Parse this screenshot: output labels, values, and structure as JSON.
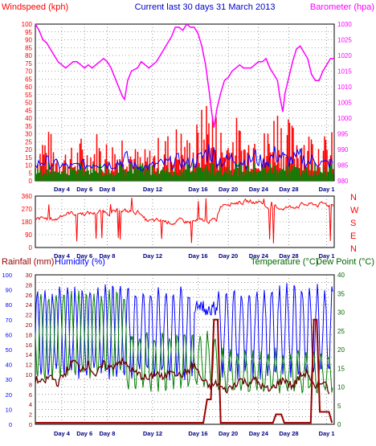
{
  "header": {
    "windspeed_label": "Windspeed (kph)",
    "title": "Current last 30 days 31 March 2013",
    "barometer_label": "Barometer (hpa)"
  },
  "bottom_header": {
    "rainfall_label": "Rainfall (mm)",
    "humidity_label": "Humidity (%)",
    "temperature_label": "Temperature (°C)",
    "dewpoint_label": "Dew Point (°C)"
  },
  "direction_labels": [
    "N",
    "W",
    "S",
    "E",
    "N"
  ],
  "x_tick_labels": [
    "Day 4",
    "Day 6",
    "Day 8",
    "Day 12",
    "Day 16",
    "Day 20",
    "Day 24",
    "Day 28",
    "Day 1"
  ],
  "colors": {
    "windspeed": "#ff0000",
    "gust": "#0000ff",
    "average": "#008000",
    "barometer": "#ff00ff",
    "direction": "#ff0000",
    "humidity": "#0000ff",
    "temperature": "#008000",
    "dewpoint": "#660000",
    "rainfall": "#990000",
    "title": "#0000cc",
    "right_labels": "#006600"
  },
  "chart_data": [
    {
      "type": "line",
      "title": "Current last 30 days 31 March 2013",
      "y_left_label": "Windspeed (kph)",
      "y_left_range": [
        0,
        100
      ],
      "y_left_ticks": [
        0,
        5,
        10,
        15,
        20,
        25,
        30,
        35,
        40,
        45,
        50,
        55,
        60,
        65,
        70,
        75,
        80,
        85,
        90,
        95,
        100
      ],
      "y_right_label": "Barometer (hpa)",
      "y_right_range": [
        980,
        1030
      ],
      "y_right_ticks": [
        980,
        985,
        990,
        995,
        1000,
        1005,
        1010,
        1015,
        1020,
        1025,
        1030
      ],
      "grid": true,
      "series": [
        {
          "name": "Barometer (hpa)",
          "axis": "right",
          "points": [
            [
              0,
              1030
            ],
            [
              0.5,
              1028
            ],
            [
              1,
              1025
            ],
            [
              1.5,
              1024
            ],
            [
              2,
              1022
            ],
            [
              2.5,
              1020
            ],
            [
              3,
              1018
            ],
            [
              3.5,
              1017
            ],
            [
              4,
              1016
            ],
            [
              4.5,
              1017
            ],
            [
              5,
              1018
            ],
            [
              5.5,
              1018
            ],
            [
              6,
              1017
            ],
            [
              6.5,
              1016
            ],
            [
              7,
              1017
            ],
            [
              7.5,
              1016
            ],
            [
              8,
              1017
            ],
            [
              8.5,
              1018
            ],
            [
              9,
              1019
            ],
            [
              9.5,
              1018
            ],
            [
              10,
              1016
            ],
            [
              10.5,
              1013
            ],
            [
              11,
              1010
            ],
            [
              11.5,
              1007
            ],
            [
              11.8,
              1006
            ],
            [
              12.2,
              1012
            ],
            [
              12.7,
              1015
            ],
            [
              13.5,
              1016
            ],
            [
              14,
              1018
            ],
            [
              14.5,
              1017
            ],
            [
              15,
              1016
            ],
            [
              15.5,
              1017
            ],
            [
              16,
              1018
            ],
            [
              16.5,
              1020
            ],
            [
              17,
              1022
            ],
            [
              17.5,
              1024
            ],
            [
              18,
              1026
            ],
            [
              18.5,
              1029
            ],
            [
              19,
              1029
            ],
            [
              19.5,
              1028
            ],
            [
              20,
              1030
            ],
            [
              20.5,
              1029
            ],
            [
              21,
              1029
            ],
            [
              21.5,
              1027
            ],
            [
              22,
              1023
            ],
            [
              22.5,
              1017
            ],
            [
              23,
              1008
            ],
            [
              23.3,
              1002
            ],
            [
              23.6,
              997
            ],
            [
              24,
              1003
            ],
            [
              24.5,
              1008
            ],
            [
              25,
              1012
            ],
            [
              25.5,
              1013
            ],
            [
              26,
              1015
            ],
            [
              26.5,
              1016
            ],
            [
              27,
              1017
            ],
            [
              27.5,
              1016
            ],
            [
              28,
              1016
            ],
            [
              28.5,
              1016
            ],
            [
              29,
              1017
            ],
            [
              29.5,
              1018
            ],
            [
              30,
              1018
            ],
            [
              30.5,
              1019
            ],
            [
              31,
              1016
            ],
            [
              31.5,
              1014
            ],
            [
              32,
              1012
            ],
            [
              32.3,
              1007
            ],
            [
              32.7,
              1002
            ],
            [
              33,
              1008
            ],
            [
              33.5,
              1013
            ],
            [
              34,
              1018
            ],
            [
              34.5,
              1022
            ],
            [
              35,
              1023
            ],
            [
              35.5,
              1021
            ],
            [
              36,
              1019
            ],
            [
              36.5,
              1014
            ],
            [
              37,
              1012
            ],
            [
              37.5,
              1012
            ],
            [
              38,
              1015
            ],
            [
              38.5,
              1017
            ],
            [
              39,
              1019
            ],
            [
              39.5,
              1019
            ]
          ]
        },
        {
          "name": "Windspeed (kph)",
          "axis": "left",
          "peaks": [
            [
              0,
              22
            ],
            [
              1,
              40
            ],
            [
              2,
              32
            ],
            [
              3,
              28
            ],
            [
              4,
              24
            ],
            [
              5,
              22
            ],
            [
              6,
              30
            ],
            [
              7,
              26
            ],
            [
              8,
              35
            ],
            [
              9,
              30
            ],
            [
              10,
              28
            ],
            [
              11,
              34
            ],
            [
              12,
              46
            ],
            [
              13,
              24
            ],
            [
              14,
              20
            ],
            [
              15,
              22
            ],
            [
              16,
              28
            ],
            [
              17,
              32
            ],
            [
              18,
              34
            ],
            [
              19,
              40
            ],
            [
              20,
              30
            ],
            [
              21,
              36
            ],
            [
              22,
              48
            ],
            [
              23,
              70
            ],
            [
              24,
              45
            ],
            [
              25,
              36
            ],
            [
              26,
              46
            ],
            [
              27,
              40
            ],
            [
              28,
              34
            ],
            [
              29,
              52
            ],
            [
              30,
              32
            ],
            [
              31,
              45
            ],
            [
              32,
              60
            ],
            [
              33,
              42
            ],
            [
              34,
              40
            ],
            [
              35,
              50
            ],
            [
              36,
              34
            ],
            [
              37,
              44
            ],
            [
              38,
              30
            ],
            [
              39,
              32
            ]
          ]
        }
      ],
      "x_tick_labels": [
        "Day 4",
        "Day 6",
        "Day 8",
        "Day 12",
        "Day 16",
        "Day 20",
        "Day 24",
        "Day 28",
        "Day 1"
      ]
    },
    {
      "type": "scatter",
      "y_left_range": [
        0,
        360
      ],
      "y_left_ticks": [
        0,
        90,
        180,
        270,
        360
      ],
      "y_right_tick_labels": [
        "N",
        "W",
        "S",
        "E",
        "N"
      ],
      "grid": true,
      "x_tick_labels": [
        "Day 4",
        "Day 6",
        "Day 8",
        "Day 12",
        "Day 16",
        "Day 20",
        "Day 24",
        "Day 28",
        "Day 1"
      ]
    },
    {
      "type": "line",
      "y_left_label": "Rainfall (mm)",
      "y_left_range": [
        0,
        30
      ],
      "y_left_ticks": [
        0,
        2,
        4,
        6,
        8,
        10,
        12,
        14,
        16,
        18,
        20,
        22,
        24,
        26,
        28,
        30
      ],
      "y_humidity_label": "Humidity (%)",
      "y_humidity_range": [
        0,
        100
      ],
      "y_humidity_ticks": [
        0,
        10,
        20,
        30,
        40,
        50,
        60,
        70,
        80,
        90,
        100
      ],
      "y_right_label": "Temperature (°C)",
      "y_right_range": [
        0,
        40
      ],
      "y_right_ticks": [
        0,
        5,
        10,
        15,
        20,
        25,
        30,
        35,
        40
      ],
      "grid": true,
      "series": [
        {
          "name": "Rainfall (mm)",
          "axis": "left",
          "points": [
            [
              0,
              0.3
            ],
            [
              22.2,
              0.3
            ],
            [
              22.7,
              5
            ],
            [
              23.2,
              5
            ],
            [
              23.6,
              21
            ],
            [
              24.1,
              21
            ],
            [
              24.5,
              0.3
            ],
            [
              31.4,
              0.3
            ],
            [
              31.8,
              2
            ],
            [
              32.5,
              2
            ],
            [
              32.9,
              0.3
            ],
            [
              36.4,
              0.3
            ],
            [
              36.8,
              21
            ],
            [
              37.2,
              21
            ],
            [
              37.6,
              2.5
            ],
            [
              38.8,
              2.5
            ],
            [
              39.2,
              0.3
            ]
          ]
        },
        {
          "name": "Dew Point (°C)",
          "axis": "right",
          "points": [
            [
              0,
              12
            ],
            [
              1,
              11
            ],
            [
              2,
              13
            ],
            [
              3,
              11
            ],
            [
              4,
              14
            ],
            [
              5,
              17
            ],
            [
              6,
              15
            ],
            [
              7,
              16
            ],
            [
              8,
              13
            ],
            [
              9,
              16
            ],
            [
              10,
              15
            ],
            [
              11,
              17
            ],
            [
              12,
              16
            ],
            [
              13,
              14
            ],
            [
              14,
              13
            ],
            [
              15,
              12
            ],
            [
              16,
              14
            ],
            [
              17,
              12
            ],
            [
              18,
              15
            ],
            [
              19,
              13
            ],
            [
              20,
              14
            ],
            [
              21,
              16
            ],
            [
              22,
              12
            ],
            [
              23,
              10
            ],
            [
              24,
              11
            ],
            [
              25,
              9
            ],
            [
              26,
              10
            ],
            [
              27,
              12
            ],
            [
              28,
              11
            ],
            [
              29,
              12
            ],
            [
              30,
              10
            ],
            [
              31,
              9
            ],
            [
              32,
              11
            ],
            [
              33,
              12
            ],
            [
              34,
              10
            ],
            [
              35,
              13
            ],
            [
              36,
              14
            ],
            [
              37,
              9
            ],
            [
              38,
              12
            ],
            [
              39,
              8
            ]
          ]
        }
      ],
      "x_tick_labels": [
        "Day 4",
        "Day 6",
        "Day 8",
        "Day 12",
        "Day 16",
        "Day 20",
        "Day 24",
        "Day 28",
        "Day 1"
      ]
    }
  ]
}
